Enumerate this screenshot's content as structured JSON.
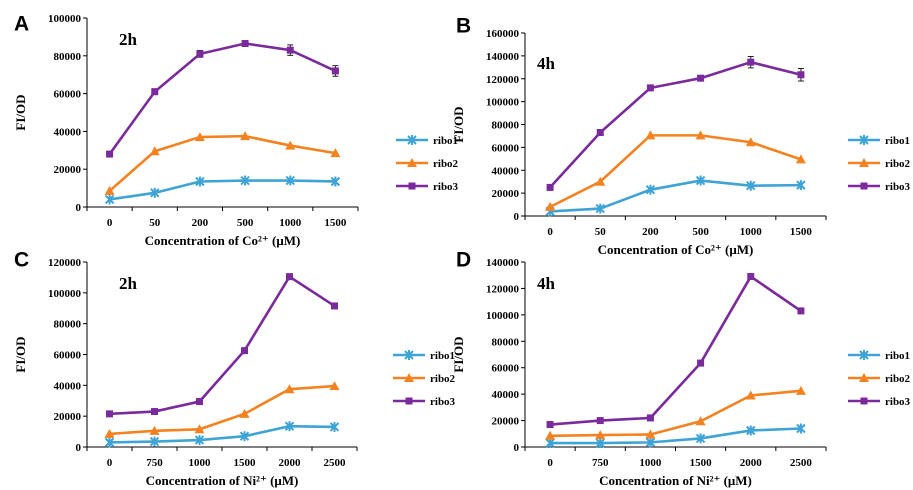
{
  "chart_data": [
    {
      "panel": "A",
      "type": "line",
      "title": "2h",
      "xlabel": "Concentration of Co²⁺ (μM)",
      "ylabel": "FI/OD",
      "categories": [
        "0",
        "50",
        "200",
        "500",
        "1000",
        "1500"
      ],
      "ylim": [
        0,
        100000
      ],
      "yticks": [
        0,
        20000,
        40000,
        60000,
        80000,
        100000
      ],
      "series": [
        {
          "name": "ribo1",
          "values": [
            4000,
            7500,
            13500,
            14000,
            14000,
            13500
          ],
          "color": "#3EA3D6",
          "marker": "x"
        },
        {
          "name": "ribo2",
          "values": [
            8500,
            29500,
            37000,
            37500,
            32500,
            28500
          ],
          "color": "#F58220",
          "marker": "triangle"
        },
        {
          "name": "ribo3",
          "values": [
            28000,
            61000,
            81000,
            86500,
            83000,
            72000
          ],
          "errors": [
            500,
            1500,
            1800,
            1200,
            2800,
            2800
          ],
          "color": "#7A2A9C",
          "marker": "square"
        }
      ]
    },
    {
      "panel": "B",
      "type": "line",
      "title": "4h",
      "xlabel": "Concentration of Co²⁺ (μM)",
      "ylabel": "FI/OD",
      "categories": [
        "0",
        "50",
        "200",
        "500",
        "1000",
        "1500"
      ],
      "ylim": [
        0,
        160000
      ],
      "yticks": [
        0,
        20000,
        40000,
        60000,
        80000,
        100000,
        120000,
        140000,
        160000
      ],
      "series": [
        {
          "name": "ribo1",
          "values": [
            4000,
            6500,
            23000,
            31000,
            26500,
            27000
          ],
          "color": "#3EA3D6",
          "marker": "x"
        },
        {
          "name": "ribo2",
          "values": [
            8000,
            30000,
            70500,
            70500,
            64500,
            49500
          ],
          "color": "#F58220",
          "marker": "triangle"
        },
        {
          "name": "ribo3",
          "values": [
            25000,
            73000,
            112000,
            120500,
            134500,
            123500
          ],
          "errors": [
            500,
            1000,
            1500,
            1200,
            5000,
            5500
          ],
          "color": "#7A2A9C",
          "marker": "square"
        }
      ]
    },
    {
      "panel": "C",
      "type": "line",
      "title": "2h",
      "xlabel": "Concentration of Ni²⁺ (μM)",
      "ylabel": "FI/OD",
      "categories": [
        "0",
        "750",
        "1000",
        "1500",
        "2000",
        "2500"
      ],
      "ylim": [
        0,
        120000
      ],
      "yticks": [
        0,
        20000,
        40000,
        60000,
        80000,
        100000,
        120000
      ],
      "series": [
        {
          "name": "ribo1",
          "values": [
            3000,
            3500,
            4500,
            7000,
            13500,
            13000
          ],
          "color": "#3EA3D6",
          "marker": "x"
        },
        {
          "name": "ribo2",
          "values": [
            8500,
            10500,
            11500,
            21500,
            37500,
            39500
          ],
          "color": "#F58220",
          "marker": "triangle"
        },
        {
          "name": "ribo3",
          "values": [
            21500,
            23000,
            29500,
            62500,
            110500,
            91500
          ],
          "color": "#7A2A9C",
          "marker": "square"
        }
      ]
    },
    {
      "panel": "D",
      "type": "line",
      "title": "4h",
      "xlabel": "Concentration of Ni²⁺ (μM)",
      "ylabel": "FI/OD",
      "categories": [
        "0",
        "750",
        "1000",
        "1500",
        "2000",
        "2500"
      ],
      "ylim": [
        0,
        140000
      ],
      "yticks": [
        0,
        20000,
        40000,
        60000,
        80000,
        100000,
        120000,
        140000
      ],
      "series": [
        {
          "name": "ribo1",
          "values": [
            3000,
            3000,
            3500,
            6500,
            12500,
            14000
          ],
          "color": "#3EA3D6",
          "marker": "x"
        },
        {
          "name": "ribo2",
          "values": [
            8500,
            9000,
            9500,
            19500,
            39000,
            42500
          ],
          "color": "#F58220",
          "marker": "triangle"
        },
        {
          "name": "ribo3",
          "values": [
            17000,
            20000,
            22000,
            63500,
            129000,
            103000
          ],
          "color": "#7A2A9C",
          "marker": "square"
        }
      ]
    }
  ]
}
